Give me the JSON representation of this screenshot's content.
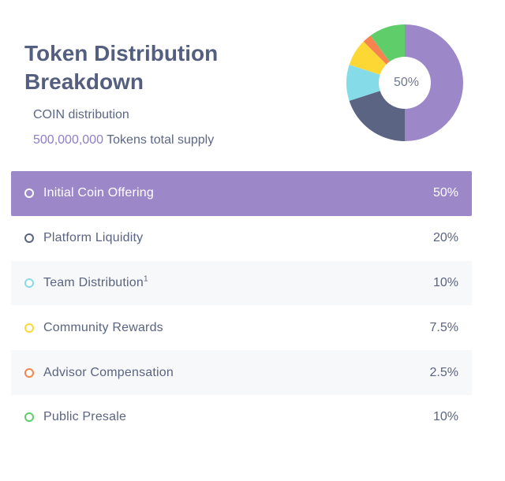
{
  "header": {
    "title": "Token Distribution Breakdown",
    "subtitle": "COIN distribution",
    "supply_number": "500,000,000",
    "supply_text": " Tokens total supply"
  },
  "chart_data": {
    "type": "pie",
    "center_label": "50%",
    "slices": [
      {
        "name": "Initial Coin Offering",
        "value": 50,
        "label": "50%",
        "color": "#9c88c9",
        "sup": ""
      },
      {
        "name": "Platform Liquidity",
        "value": 20,
        "label": "20%",
        "color": "#5b6482",
        "sup": ""
      },
      {
        "name": "Team Distribution",
        "value": 10,
        "label": "10%",
        "color": "#86dbe8",
        "sup": "1"
      },
      {
        "name": "Community Rewards",
        "value": 7.5,
        "label": "7.5%",
        "color": "#fdd835",
        "sup": ""
      },
      {
        "name": "Advisor Compensation",
        "value": 2.5,
        "label": "2.5%",
        "color": "#f7834e",
        "sup": ""
      },
      {
        "name": "Public Presale",
        "value": 10,
        "label": "10%",
        "color": "#5fce6a",
        "sup": ""
      }
    ],
    "active_index": 0
  }
}
